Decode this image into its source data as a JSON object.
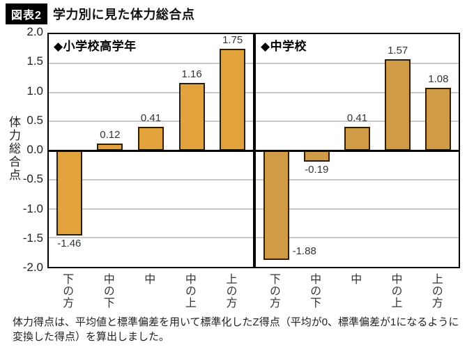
{
  "title": {
    "badge": "図表2",
    "text": "学力別に見た体力総合点"
  },
  "y_axis": {
    "label": "体力総合点",
    "ticks": [
      "2.0",
      "1.5",
      "1.0",
      "0.5",
      "0.0",
      "-0.5",
      "-1.0",
      "-1.5",
      "-2.0"
    ]
  },
  "footnote": "体力得点は、平均値と標準偏差を用いて標準化したZ得点（平均が0、標準偏差が1になるように変換した得点）を算出しました。",
  "chart_data": {
    "type": "bar",
    "categories": [
      "下の方",
      "中の下",
      "中",
      "中の上",
      "上の方"
    ],
    "xlabel": "",
    "ylabel": "体力総合点",
    "ylim": [
      -2.0,
      2.0
    ],
    "tick_step": 0.5,
    "grid": true,
    "panels": [
      {
        "name": "elementary-upper-grades",
        "legend": "◆小学校高学年",
        "values": [
          -1.46,
          0.12,
          0.41,
          1.16,
          1.75
        ],
        "bar_color": "#E3A33C"
      },
      {
        "name": "junior-high-school",
        "legend": "◆中学校",
        "values": [
          -1.88,
          -0.19,
          0.41,
          1.57,
          1.08
        ],
        "bar_color": "#CF9B47"
      }
    ],
    "bar_border_color": "#2b1d08",
    "grid_color": "#c9c9c9",
    "zero_line_color": "#000000"
  }
}
